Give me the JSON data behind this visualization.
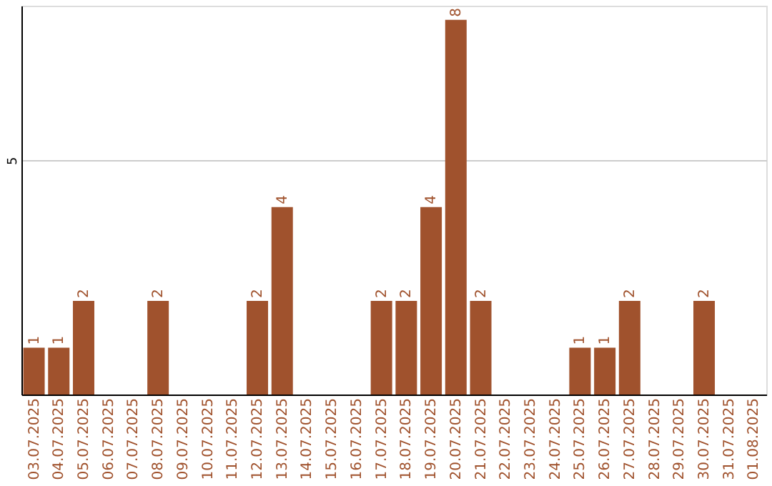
{
  "chart_data": {
    "type": "bar",
    "categories": [
      "03.07.2025",
      "04.07.2025",
      "05.07.2025",
      "06.07.2025",
      "07.07.2025",
      "08.07.2025",
      "09.07.2025",
      "10.07.2025",
      "11.07.2025",
      "12.07.2025",
      "13.07.2025",
      "14.07.2025",
      "15.07.2025",
      "16.07.2025",
      "17.07.2025",
      "18.07.2025",
      "19.07.2025",
      "20.07.2025",
      "21.07.2025",
      "22.07.2025",
      "23.07.2025",
      "24.07.2025",
      "25.07.2025",
      "26.07.2025",
      "27.07.2025",
      "28.07.2025",
      "29.07.2025",
      "30.07.2025",
      "31.07.2025",
      "01.08.2025"
    ],
    "values": [
      1,
      1,
      2,
      0,
      0,
      2,
      0,
      0,
      0,
      2,
      4,
      0,
      0,
      0,
      2,
      2,
      4,
      8,
      2,
      0,
      0,
      0,
      1,
      1,
      2,
      0,
      0,
      2,
      0,
      0
    ],
    "value_labels": [
      "1",
      "1",
      "2",
      null,
      null,
      "2",
      null,
      null,
      null,
      "2",
      "4",
      null,
      null,
      null,
      "2",
      "2",
      "4",
      "8",
      "2",
      null,
      null,
      null,
      "1",
      "1",
      "2",
      null,
      null,
      "2",
      null,
      null
    ],
    "color": "#a0522d",
    "ylim": [
      0,
      8.3
    ],
    "yticks": [
      5
    ],
    "grid": "y"
  }
}
